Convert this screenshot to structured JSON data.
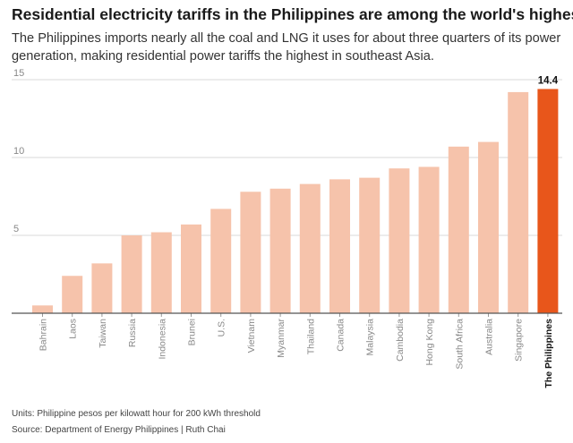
{
  "header": {
    "title": "Residential electricity tariffs in the Philippines are among the world's highest",
    "subtitle": "The Philippines imports nearly all the coal and LNG it uses for about three quarters of its power generation, making residential power tariffs the highest in southeast Asia."
  },
  "footer": {
    "units": "Units: Philippine pesos per kilowatt hour for 200 kWh threshold",
    "source": "Source: Department of Energy Philippines  | Ruth Chai"
  },
  "colors": {
    "bar": "#f6c3ab",
    "highlight": "#e8561b",
    "grid": "#d9d9d9",
    "axis": "#555555"
  },
  "chart_data": {
    "type": "bar",
    "categories": [
      "Bahrain",
      "Laos",
      "Taiwan",
      "Russia",
      "Indonesia",
      "Brunei",
      "U.S.",
      "Vietnam",
      "Myanmar",
      "Thailand",
      "Canada",
      "Malaysia",
      "Cambodia",
      "Hong Kong",
      "South Africa",
      "Australia",
      "Singapore",
      "The Philippines"
    ],
    "values": [
      0.5,
      2.4,
      3.2,
      5.0,
      5.2,
      5.7,
      6.7,
      7.8,
      8.0,
      8.3,
      8.6,
      8.7,
      9.3,
      9.4,
      10.7,
      11.0,
      14.2,
      14.4
    ],
    "highlight_index": 17,
    "highlight_label": "14.4",
    "ylim": [
      0,
      15
    ],
    "yticks": [
      5,
      10,
      15
    ],
    "grid": true,
    "xlabel": "",
    "ylabel": ""
  }
}
